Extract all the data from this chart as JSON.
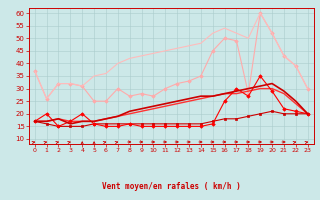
{
  "x": [
    0,
    1,
    2,
    3,
    4,
    5,
    6,
    7,
    8,
    9,
    10,
    11,
    12,
    13,
    14,
    15,
    16,
    17,
    18,
    19,
    20,
    21,
    22,
    23
  ],
  "series": [
    {
      "values": [
        37,
        26,
        32,
        32,
        31,
        25,
        25,
        30,
        27,
        28,
        27,
        30,
        32,
        33,
        35,
        45,
        50,
        49,
        28,
        60,
        52,
        43,
        39,
        30
      ],
      "color": "#ffaaaa",
      "marker": "D",
      "markersize": 1.8,
      "linewidth": 0.8,
      "zorder": 2
    },
    {
      "values": [
        37,
        26,
        32,
        32,
        31,
        35,
        36,
        40,
        42,
        43,
        44,
        45,
        46,
        47,
        48,
        52,
        54,
        52,
        50,
        60,
        52,
        43,
        39,
        30
      ],
      "color": "#ffbbbb",
      "marker": null,
      "markersize": 0,
      "linewidth": 0.8,
      "zorder": 2
    },
    {
      "values": [
        17,
        17,
        18,
        16,
        17,
        17,
        18,
        19,
        21,
        22,
        23,
        24,
        25,
        26,
        27,
        27,
        28,
        29,
        30,
        31,
        32,
        29,
        25,
        20
      ],
      "color": "#cc0000",
      "marker": null,
      "markersize": 0,
      "linewidth": 1.2,
      "zorder": 4
    },
    {
      "values": [
        17,
        17,
        18,
        17,
        17,
        17,
        18,
        19,
        20,
        21,
        22,
        23,
        24,
        25,
        26,
        27,
        28,
        28,
        29,
        30,
        30,
        28,
        24,
        20
      ],
      "color": "#ff3333",
      "marker": null,
      "markersize": 0,
      "linewidth": 1.0,
      "zorder": 3
    },
    {
      "values": [
        17,
        16,
        15,
        15,
        15,
        16,
        16,
        16,
        16,
        16,
        16,
        16,
        16,
        16,
        16,
        17,
        18,
        18,
        19,
        20,
        21,
        20,
        20,
        20
      ],
      "color": "#cc0000",
      "marker": "s",
      "markersize": 1.8,
      "linewidth": 0.8,
      "zorder": 3
    },
    {
      "values": [
        17,
        20,
        15,
        17,
        20,
        16,
        15,
        15,
        16,
        15,
        15,
        15,
        15,
        15,
        15,
        16,
        25,
        30,
        27,
        35,
        29,
        22,
        21,
        20
      ],
      "color": "#ff0000",
      "marker": "D",
      "markersize": 1.8,
      "linewidth": 0.8,
      "zorder": 3
    }
  ],
  "xlabel": "Vent moyen/en rafales ( km/h )",
  "xlim": [
    -0.5,
    23.5
  ],
  "ylim": [
    8,
    62
  ],
  "yticks": [
    10,
    15,
    20,
    25,
    30,
    35,
    40,
    45,
    50,
    55,
    60
  ],
  "xticks": [
    0,
    1,
    2,
    3,
    4,
    5,
    6,
    7,
    8,
    9,
    10,
    11,
    12,
    13,
    14,
    15,
    16,
    17,
    18,
    19,
    20,
    21,
    22,
    23
  ],
  "bg_color": "#cce8e8",
  "grid_color": "#aacccc",
  "label_color": "#cc0000",
  "arrow_angles": [
    45,
    45,
    45,
    45,
    0,
    0,
    45,
    45,
    90,
    90,
    90,
    90,
    90,
    90,
    90,
    90,
    90,
    90,
    90,
    90,
    90,
    90,
    45,
    45
  ]
}
